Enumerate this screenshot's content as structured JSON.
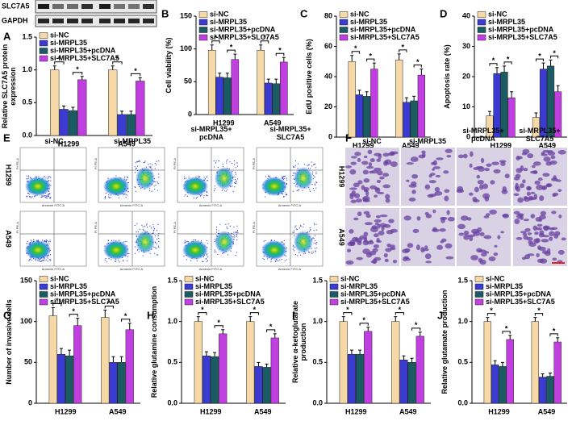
{
  "panel_labels": [
    "A",
    "B",
    "C",
    "D",
    "E",
    "F",
    "G",
    "H",
    "I",
    "J"
  ],
  "western_blot": {
    "rows": [
      "SLC7A5",
      "GAPDH"
    ]
  },
  "flow_cytometry": {
    "columns": [
      "si-NC",
      "si-MRPL35",
      "si-MRPL35+ pcDNA",
      "si-MRPL35+ SLC7A5"
    ],
    "rows": [
      "H1299",
      "A549"
    ],
    "x_axis_label": "Annexin FITC-A",
    "y_axis_label": "PI PE-A"
  },
  "transwell": {
    "columns": [
      "si-NC",
      "si-MRPL35",
      "si-MRPL35+ pcDNA",
      "si-MRPL35+ SLC7A5"
    ],
    "rows": [
      "H1299",
      "A549"
    ]
  },
  "chart_data": [
    {
      "type": "bar",
      "ylabel": "Relative SLC7A5 protein expression",
      "categories": [
        "H1299",
        "A549"
      ],
      "series": [
        {
          "name": "si-NC",
          "color": "#f7d9a8",
          "values": [
            1.0,
            1.0
          ],
          "errors": [
            0.06,
            0.06
          ]
        },
        {
          "name": "si-MRPL35",
          "color": "#3b3bd1",
          "values": [
            0.4,
            0.32
          ],
          "errors": [
            0.05,
            0.05
          ]
        },
        {
          "name": "si-MRPL35+pcDNA",
          "color": "#1b5b63",
          "values": [
            0.38,
            0.32
          ],
          "errors": [
            0.05,
            0.05
          ]
        },
        {
          "name": "si-MRPL35+SLC7A5",
          "color": "#c13fe0",
          "values": [
            0.85,
            0.83
          ],
          "errors": [
            0.05,
            0.05
          ]
        }
      ],
      "ylim": [
        0,
        1.5
      ],
      "yticks": [
        {
          "value": 0,
          "label": "0.0"
        },
        {
          "value": 0.5,
          "label": "0.5"
        },
        {
          "value": 1,
          "label": "1.0"
        },
        {
          "value": 1.5,
          "label": "1.5"
        }
      ],
      "significance": "*"
    },
    {
      "type": "bar",
      "ylabel": "Cell viability (%)",
      "categories": [
        "H1299",
        "A549"
      ],
      "series": [
        {
          "name": "si-NC",
          "color": "#f7d9a8",
          "values": [
            98,
            98
          ],
          "errors": [
            8,
            8
          ]
        },
        {
          "name": "si-MRPL35",
          "color": "#3b3bd1",
          "values": [
            57,
            48
          ],
          "errors": [
            6,
            6
          ]
        },
        {
          "name": "si-MRPL35+pcDNA",
          "color": "#1b5b63",
          "values": [
            56,
            47
          ],
          "errors": [
            7,
            7
          ]
        },
        {
          "name": "si-MRPL35+SLC7A5",
          "color": "#c13fe0",
          "values": [
            84,
            80
          ],
          "errors": [
            8,
            7
          ]
        }
      ],
      "ylim": [
        0,
        150
      ],
      "yticks": [
        0,
        50,
        100,
        150
      ],
      "significance": "*"
    },
    {
      "type": "bar",
      "ylabel": "EdU positive cells (%)",
      "categories": [
        "H1299",
        "A549"
      ],
      "series": [
        {
          "name": "si-NC",
          "color": "#f7d9a8",
          "values": [
            50,
            51
          ],
          "errors": [
            4,
            4
          ]
        },
        {
          "name": "si-MRPL35",
          "color": "#3b3bd1",
          "values": [
            28,
            23
          ],
          "errors": [
            3,
            3
          ]
        },
        {
          "name": "si-MRPL35+pcDNA",
          "color": "#1b5b63",
          "values": [
            27,
            24
          ],
          "errors": [
            3,
            3
          ]
        },
        {
          "name": "si-MRPL35+SLC7A5",
          "color": "#c13fe0",
          "values": [
            45,
            41
          ],
          "errors": [
            4,
            4
          ]
        }
      ],
      "ylim": [
        0,
        80
      ],
      "yticks": [
        0,
        20,
        40,
        60,
        80
      ],
      "significance": "*"
    },
    {
      "type": "bar",
      "ylabel": "Apoptosis rate (%)",
      "categories": [
        "H1299",
        "A549"
      ],
      "series": [
        {
          "name": "si-NC",
          "color": "#f7d9a8",
          "values": [
            7,
            6.5
          ],
          "errors": [
            1.5,
            1.5
          ]
        },
        {
          "name": "si-MRPL35",
          "color": "#3b3bd1",
          "values": [
            21,
            22.5
          ],
          "errors": [
            2,
            2
          ]
        },
        {
          "name": "si-MRPL35+pcDNA",
          "color": "#1b5b63",
          "values": [
            21.5,
            23.5
          ],
          "errors": [
            2,
            2
          ]
        },
        {
          "name": "si-MRPL35+SLC7A5",
          "color": "#c13fe0",
          "values": [
            13,
            15
          ],
          "errors": [
            2,
            2
          ]
        }
      ],
      "ylim": [
        0,
        40
      ],
      "yticks": [
        0,
        10,
        20,
        30,
        40
      ],
      "significance": "*"
    },
    {
      "type": "bar",
      "ylabel": "Number of invasive cells",
      "categories": [
        "H1299",
        "A549"
      ],
      "series": [
        {
          "name": "si-NC",
          "color": "#f7d9a8",
          "values": [
            107,
            105
          ],
          "errors": [
            10,
            9
          ]
        },
        {
          "name": "si-MRPL35",
          "color": "#3b3bd1",
          "values": [
            60,
            50
          ],
          "errors": [
            7,
            7
          ]
        },
        {
          "name": "si-MRPL35+pcDNA",
          "color": "#1b5b63",
          "values": [
            58,
            50
          ],
          "errors": [
            7,
            7
          ]
        },
        {
          "name": "si-MRPL35+SLC7A5",
          "color": "#c13fe0",
          "values": [
            95,
            90
          ],
          "errors": [
            9,
            8
          ]
        }
      ],
      "ylim": [
        0,
        150
      ],
      "yticks": [
        0,
        50,
        100,
        150
      ],
      "significance": "*"
    },
    {
      "type": "bar",
      "ylabel": "Relative glutamine consumption",
      "categories": [
        "H1299",
        "A549"
      ],
      "series": [
        {
          "name": "si-NC",
          "color": "#f7d9a8",
          "values": [
            1.0,
            1.0
          ],
          "errors": [
            0.06,
            0.06
          ]
        },
        {
          "name": "si-MRPL35",
          "color": "#3b3bd1",
          "values": [
            0.58,
            0.45
          ],
          "errors": [
            0.05,
            0.05
          ]
        },
        {
          "name": "si-MRPL35+pcDNA",
          "color": "#1b5b63",
          "values": [
            0.57,
            0.44
          ],
          "errors": [
            0.05,
            0.04
          ]
        },
        {
          "name": "si-MRPL35+SLC7A5",
          "color": "#c13fe0",
          "values": [
            0.85,
            0.8
          ],
          "errors": [
            0.05,
            0.05
          ]
        }
      ],
      "ylim": [
        0,
        1.5
      ],
      "yticks": [
        {
          "value": 0,
          "label": "0.0"
        },
        {
          "value": 0.5,
          "label": "0.5"
        },
        {
          "value": 1,
          "label": "1.0"
        },
        {
          "value": 1.5,
          "label": "1.5"
        }
      ],
      "significance": "*"
    },
    {
      "type": "bar",
      "ylabel": "Relative α-ketoglutarate production",
      "categories": [
        "H1299",
        "A549"
      ],
      "series": [
        {
          "name": "si-NC",
          "color": "#f7d9a8",
          "values": [
            1.0,
            1.0
          ],
          "errors": [
            0.06,
            0.06
          ]
        },
        {
          "name": "si-MRPL35",
          "color": "#3b3bd1",
          "values": [
            0.6,
            0.53
          ],
          "errors": [
            0.05,
            0.05
          ]
        },
        {
          "name": "si-MRPL35+pcDNA",
          "color": "#1b5b63",
          "values": [
            0.6,
            0.5
          ],
          "errors": [
            0.05,
            0.05
          ]
        },
        {
          "name": "si-MRPL35+SLC7A5",
          "color": "#c13fe0",
          "values": [
            0.88,
            0.82
          ],
          "errors": [
            0.05,
            0.05
          ]
        }
      ],
      "ylim": [
        0,
        1.5
      ],
      "yticks": [
        {
          "value": 0,
          "label": "0.0"
        },
        {
          "value": 0.5,
          "label": "0.5"
        },
        {
          "value": 1,
          "label": "1.0"
        },
        {
          "value": 1.5,
          "label": "1.5"
        }
      ],
      "significance": "*"
    },
    {
      "type": "bar",
      "ylabel": "Relative glutamate production",
      "categories": [
        "H1299",
        "A549"
      ],
      "series": [
        {
          "name": "si-NC",
          "color": "#f7d9a8",
          "values": [
            1.0,
            1.0
          ],
          "errors": [
            0.05,
            0.05
          ]
        },
        {
          "name": "si-MRPL35",
          "color": "#3b3bd1",
          "values": [
            0.47,
            0.32
          ],
          "errors": [
            0.05,
            0.04
          ]
        },
        {
          "name": "si-MRPL35+pcDNA",
          "color": "#1b5b63",
          "values": [
            0.45,
            0.33
          ],
          "errors": [
            0.05,
            0.04
          ]
        },
        {
          "name": "si-MRPL35+SLC7A5",
          "color": "#c13fe0",
          "values": [
            0.78,
            0.75
          ],
          "errors": [
            0.05,
            0.05
          ]
        }
      ],
      "ylim": [
        0,
        1.5
      ],
      "yticks": [
        {
          "value": 0,
          "label": "0.0"
        },
        {
          "value": 0.5,
          "label": "0.5"
        },
        {
          "value": 1,
          "label": "1.0"
        },
        {
          "value": 1.5,
          "label": "1.5"
        }
      ],
      "significance": "*"
    }
  ]
}
